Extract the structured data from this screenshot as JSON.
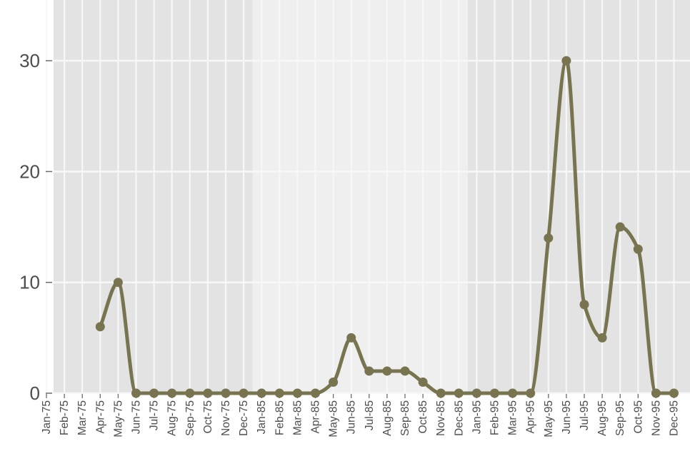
{
  "chart_data": {
    "type": "line",
    "title": "",
    "xlabel": "",
    "ylabel": "",
    "ylim": [
      0,
      35
    ],
    "yticks": [
      0,
      10,
      20,
      30
    ],
    "grid": true,
    "legend": "none",
    "colors": {
      "line": "#77744f",
      "panel_light": "#efefef",
      "panel_dark": "#e3e3e3",
      "grid": "#f7f7f7",
      "tick_text": "#4d4d4d"
    },
    "categories": [
      "Jan-75",
      "Feb-75",
      "Mar-75",
      "Apr-75",
      "May-75",
      "Jun-75",
      "Jul-75",
      "Aug-75",
      "Sep-75",
      "Oct-75",
      "Nov-75",
      "Dec-75",
      "Jan-85",
      "Feb-85",
      "Mar-85",
      "Apr-85",
      "May-85",
      "Jun-85",
      "Jul-85",
      "Aug-85",
      "Sep-85",
      "Oct-85",
      "Nov-85",
      "Dec-85",
      "Jan-95",
      "Feb-95",
      "Mar-95",
      "Apr-95",
      "May-95",
      "Jun-95",
      "Jul-95",
      "Aug-95",
      "Sep-95",
      "Oct-95",
      "Nov-95",
      "Dec-95"
    ],
    "bands": [
      {
        "from": "Jan-75",
        "to": "Dec-75",
        "shade": "dark"
      },
      {
        "from": "Jan-85",
        "to": "Dec-85",
        "shade": "light"
      },
      {
        "from": "Jan-95",
        "to": "Dec-95",
        "shade": "dark"
      }
    ],
    "series": [
      {
        "values": [
          null,
          null,
          null,
          6,
          10,
          0,
          0,
          0,
          0,
          0,
          0,
          0,
          0,
          0,
          0,
          0,
          1,
          5,
          2,
          2,
          2,
          1,
          0,
          0,
          0,
          0,
          0,
          0,
          14,
          30,
          8,
          5,
          15,
          13,
          0,
          0
        ]
      }
    ]
  }
}
